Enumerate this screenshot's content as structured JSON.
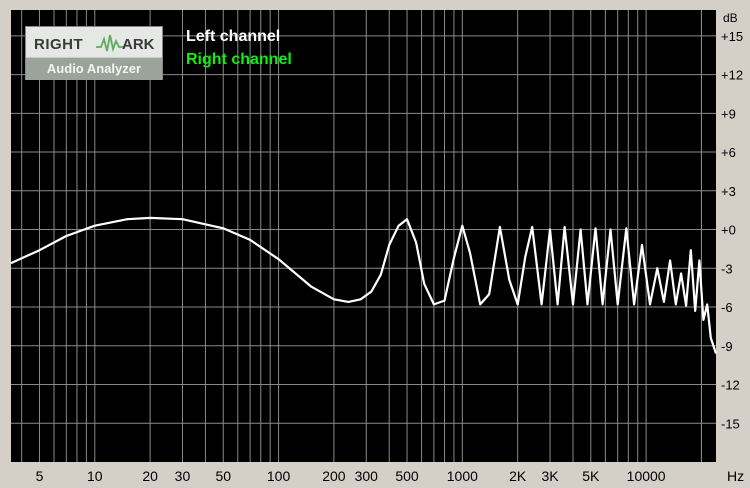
{
  "logo": {
    "word1": "RIGHT",
    "word2": "ARK",
    "subtitle": "Audio Analyzer"
  },
  "colors": {
    "background": "#000000",
    "grid": "#8a8a8a",
    "left": "#ffffff",
    "right": "#11ee11",
    "frame": "#d4d0c8"
  },
  "chart_data": {
    "type": "line",
    "title": "",
    "xlabel": "Hz",
    "ylabel": "dB",
    "x_scale": "log",
    "xlim": [
      3.5,
      24000
    ],
    "ylim": [
      -18,
      17
    ],
    "grid": true,
    "legend_position": "top-left",
    "legend": [
      "Left channel",
      "Right channel"
    ],
    "x_ticks": [
      5,
      10,
      20,
      30,
      50,
      100,
      200,
      300,
      500,
      1000,
      2000,
      3000,
      5000,
      10000
    ],
    "x_tick_labels": [
      "5",
      "10",
      "20",
      "30",
      "50",
      "100",
      "200",
      "300",
      "500",
      "1000",
      "2K",
      "3K",
      "5K",
      "10000"
    ],
    "y_ticks": [
      15,
      12,
      9,
      6,
      3,
      0,
      -3,
      -6,
      -9,
      -12,
      -15
    ],
    "y_tick_labels": [
      "+15",
      "+12",
      "+9",
      "+6",
      "+3",
      "+0",
      "-3",
      "-6",
      "-9",
      "-12",
      "-15"
    ],
    "series": [
      {
        "name": "Left channel",
        "color": "#ffffff",
        "x": [
          3.5,
          5,
          7,
          10,
          15,
          20,
          30,
          50,
          70,
          100,
          150,
          200,
          240,
          280,
          320,
          360,
          400,
          450,
          500,
          560,
          620,
          700,
          800,
          900,
          1000,
          1100,
          1250,
          1400,
          1600,
          1800,
          2000,
          2200,
          2400,
          2700,
          3000,
          3300,
          3600,
          4000,
          4400,
          4800,
          5300,
          5800,
          6400,
          7000,
          7800,
          8600,
          9500,
          10500,
          11500,
          12500,
          13500,
          14500,
          15500,
          16500,
          17500,
          18500,
          19500,
          20500,
          21500,
          22500,
          24000
        ],
        "y": [
          -2.6,
          -1.6,
          -0.5,
          0.3,
          0.8,
          0.9,
          0.8,
          0.1,
          -0.8,
          -2.3,
          -4.4,
          -5.4,
          -5.6,
          -5.4,
          -4.8,
          -3.5,
          -1.2,
          0.3,
          0.8,
          -1.0,
          -4.2,
          -5.8,
          -5.5,
          -2.2,
          0.3,
          -1.8,
          -5.8,
          -5.0,
          0.2,
          -3.9,
          -5.8,
          -2.1,
          0.2,
          -5.8,
          0.0,
          -5.8,
          0.2,
          -5.8,
          0.0,
          -5.8,
          0.1,
          -5.8,
          0.0,
          -5.8,
          0.1,
          -5.8,
          -1.2,
          -5.8,
          -3.0,
          -5.6,
          -2.4,
          -5.8,
          -3.4,
          -5.9,
          -1.6,
          -6.3,
          -2.4,
          -7.0,
          -5.8,
          -8.4,
          -9.6
        ]
      },
      {
        "name": "Right channel",
        "color": "#11ee11",
        "x": [],
        "y": []
      }
    ]
  }
}
